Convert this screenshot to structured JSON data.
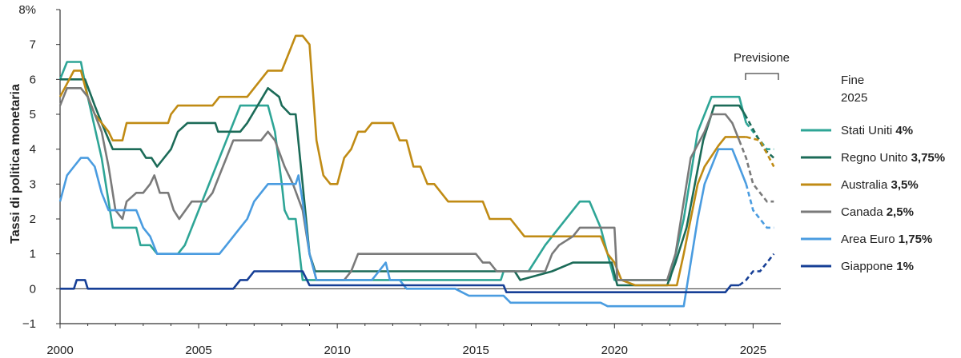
{
  "chart_data": {
    "type": "line",
    "ylabel": "Tassi di politica monetaria",
    "xlabel": "",
    "xlim": [
      2000,
      2026
    ],
    "ylim": [
      -1,
      8
    ],
    "x_ticks": [
      2000,
      2005,
      2010,
      2015,
      2020,
      2025
    ],
    "y_ticks": [
      -1,
      0,
      1,
      2,
      3,
      4,
      5,
      6,
      7,
      8
    ],
    "y_tick_labels": [
      "−1",
      "0",
      "1",
      "2",
      "3",
      "4",
      "5",
      "6",
      "7",
      "8%"
    ],
    "forecast_label": "Previsione",
    "forecast_start": 2024.5,
    "legend_title": [
      "Fine",
      "2025"
    ],
    "legend_position": "right",
    "grid": false,
    "series": [
      {
        "name": "Stati Uniti",
        "end_value_label": "4%",
        "color": "#2ea596",
        "points": [
          [
            2000,
            6.0
          ],
          [
            2000.25,
            6.5
          ],
          [
            2000.75,
            6.5
          ],
          [
            2001,
            5.5
          ],
          [
            2001.5,
            3.75
          ],
          [
            2001.9,
            1.75
          ],
          [
            2002.75,
            1.75
          ],
          [
            2002.9,
            1.25
          ],
          [
            2003.25,
            1.25
          ],
          [
            2003.5,
            1.0
          ],
          [
            2004.25,
            1.0
          ],
          [
            2004.5,
            1.25
          ],
          [
            2005,
            2.25
          ],
          [
            2005.5,
            3.25
          ],
          [
            2006,
            4.25
          ],
          [
            2006.5,
            5.25
          ],
          [
            2007.5,
            5.25
          ],
          [
            2007.75,
            4.5
          ],
          [
            2008,
            3.0
          ],
          [
            2008.1,
            2.25
          ],
          [
            2008.25,
            2.0
          ],
          [
            2008.5,
            2.0
          ],
          [
            2008.75,
            0.25
          ],
          [
            2015.9,
            0.25
          ],
          [
            2016,
            0.5
          ],
          [
            2016.9,
            0.5
          ],
          [
            2017.5,
            1.25
          ],
          [
            2018,
            1.75
          ],
          [
            2018.75,
            2.5
          ],
          [
            2019.1,
            2.5
          ],
          [
            2019.5,
            1.75
          ],
          [
            2020,
            0.25
          ],
          [
            2022,
            0.25
          ],
          [
            2022.5,
            2.0
          ],
          [
            2023,
            4.5
          ],
          [
            2023.5,
            5.5
          ],
          [
            2024.5,
            5.5
          ],
          [
            2024.75,
            4.75
          ],
          [
            2025,
            4.5
          ],
          [
            2025.5,
            4.0
          ],
          [
            2025.75,
            4.0
          ]
        ],
        "forecast_from": 2024.75
      },
      {
        "name": "Regno Unito",
        "end_value_label": "3,75%",
        "color": "#1c6b58",
        "points": [
          [
            2000,
            6.0
          ],
          [
            2000.9,
            6.0
          ],
          [
            2001.25,
            5.25
          ],
          [
            2001.5,
            4.75
          ],
          [
            2001.9,
            4.0
          ],
          [
            2002.9,
            4.0
          ],
          [
            2003.1,
            3.75
          ],
          [
            2003.3,
            3.75
          ],
          [
            2003.5,
            3.5
          ],
          [
            2004,
            4.0
          ],
          [
            2004.25,
            4.5
          ],
          [
            2004.6,
            4.75
          ],
          [
            2005.6,
            4.75
          ],
          [
            2005.7,
            4.5
          ],
          [
            2006.5,
            4.5
          ],
          [
            2006.75,
            4.75
          ],
          [
            2007.5,
            5.75
          ],
          [
            2007.9,
            5.5
          ],
          [
            2008,
            5.25
          ],
          [
            2008.3,
            5.0
          ],
          [
            2008.5,
            5.0
          ],
          [
            2008.75,
            3.0
          ],
          [
            2009,
            1.0
          ],
          [
            2009.2,
            0.5
          ],
          [
            2016.4,
            0.5
          ],
          [
            2016.6,
            0.25
          ],
          [
            2017.75,
            0.5
          ],
          [
            2018.5,
            0.75
          ],
          [
            2019.9,
            0.75
          ],
          [
            2020.1,
            0.1
          ],
          [
            2021.9,
            0.1
          ],
          [
            2022.2,
            0.75
          ],
          [
            2022.6,
            1.75
          ],
          [
            2022.9,
            3.0
          ],
          [
            2023.2,
            4.25
          ],
          [
            2023.6,
            5.25
          ],
          [
            2024.5,
            5.25
          ],
          [
            2024.7,
            5.0
          ],
          [
            2025.4,
            4.0
          ],
          [
            2025.75,
            3.75
          ]
        ],
        "forecast_from": 2024.7
      },
      {
        "name": "Australia",
        "end_value_label": "3,5%",
        "color": "#c08b14",
        "points": [
          [
            2000,
            5.5
          ],
          [
            2000.5,
            6.25
          ],
          [
            2000.75,
            6.25
          ],
          [
            2001,
            5.5
          ],
          [
            2001.25,
            5.0
          ],
          [
            2001.75,
            4.5
          ],
          [
            2001.9,
            4.25
          ],
          [
            2002.25,
            4.25
          ],
          [
            2002.4,
            4.75
          ],
          [
            2003.9,
            4.75
          ],
          [
            2004,
            5.0
          ],
          [
            2004.25,
            5.25
          ],
          [
            2005.5,
            5.25
          ],
          [
            2005.75,
            5.5
          ],
          [
            2006.75,
            5.5
          ],
          [
            2007,
            5.75
          ],
          [
            2007.5,
            6.25
          ],
          [
            2008,
            6.25
          ],
          [
            2008.25,
            6.75
          ],
          [
            2008.5,
            7.25
          ],
          [
            2008.75,
            7.25
          ],
          [
            2009,
            7.0
          ],
          [
            2009.25,
            4.25
          ],
          [
            2009.5,
            3.25
          ],
          [
            2009.75,
            3.0
          ],
          [
            2010,
            3.0
          ],
          [
            2010.25,
            3.75
          ],
          [
            2010.5,
            4.0
          ],
          [
            2010.75,
            4.5
          ],
          [
            2011,
            4.5
          ],
          [
            2011.25,
            4.75
          ],
          [
            2012,
            4.75
          ],
          [
            2012.25,
            4.25
          ],
          [
            2012.5,
            4.25
          ],
          [
            2012.75,
            3.5
          ],
          [
            2013,
            3.5
          ],
          [
            2013.25,
            3.0
          ],
          [
            2013.5,
            3.0
          ],
          [
            2014,
            2.5
          ],
          [
            2015.25,
            2.5
          ],
          [
            2015.5,
            2.0
          ],
          [
            2016.25,
            2.0
          ],
          [
            2016.5,
            1.75
          ],
          [
            2016.75,
            1.5
          ],
          [
            2019.5,
            1.5
          ],
          [
            2019.75,
            1.0
          ],
          [
            2020,
            0.75
          ],
          [
            2020.25,
            0.25
          ],
          [
            2020.75,
            0.1
          ],
          [
            2022.25,
            0.1
          ],
          [
            2022.5,
            1.0
          ],
          [
            2022.75,
            2.0
          ],
          [
            2023,
            3.0
          ],
          [
            2023.25,
            3.5
          ],
          [
            2023.75,
            4.1
          ],
          [
            2024,
            4.35
          ],
          [
            2024.5,
            4.35
          ],
          [
            2024.75,
            4.35
          ],
          [
            2025.25,
            4.25
          ],
          [
            2025.75,
            3.5
          ]
        ],
        "forecast_from": 2024.75
      },
      {
        "name": "Canada",
        "end_value_label": "2,5%",
        "color": "#7a7a7a",
        "points": [
          [
            2000,
            5.25
          ],
          [
            2000.25,
            5.75
          ],
          [
            2000.75,
            5.75
          ],
          [
            2001,
            5.5
          ],
          [
            2001.25,
            5.0
          ],
          [
            2001.5,
            4.5
          ],
          [
            2001.75,
            3.5
          ],
          [
            2002,
            2.25
          ],
          [
            2002.25,
            2.0
          ],
          [
            2002.4,
            2.5
          ],
          [
            2002.75,
            2.75
          ],
          [
            2003,
            2.75
          ],
          [
            2003.25,
            3.0
          ],
          [
            2003.4,
            3.25
          ],
          [
            2003.6,
            2.75
          ],
          [
            2003.9,
            2.75
          ],
          [
            2004.1,
            2.25
          ],
          [
            2004.3,
            2.0
          ],
          [
            2004.75,
            2.5
          ],
          [
            2005.25,
            2.5
          ],
          [
            2005.5,
            2.75
          ],
          [
            2005.75,
            3.25
          ],
          [
            2006,
            3.75
          ],
          [
            2006.25,
            4.25
          ],
          [
            2007.25,
            4.25
          ],
          [
            2007.5,
            4.5
          ],
          [
            2007.75,
            4.25
          ],
          [
            2008.1,
            3.5
          ],
          [
            2008.4,
            3.0
          ],
          [
            2008.75,
            2.25
          ],
          [
            2009,
            1.0
          ],
          [
            2009.25,
            0.25
          ],
          [
            2010.25,
            0.25
          ],
          [
            2010.5,
            0.5
          ],
          [
            2010.75,
            1.0
          ],
          [
            2015,
            1.0
          ],
          [
            2015.25,
            0.75
          ],
          [
            2015.5,
            0.75
          ],
          [
            2015.75,
            0.5
          ],
          [
            2016.5,
            0.5
          ],
          [
            2017.5,
            0.5
          ],
          [
            2017.75,
            1.0
          ],
          [
            2018,
            1.25
          ],
          [
            2018.5,
            1.5
          ],
          [
            2018.75,
            1.75
          ],
          [
            2020,
            1.75
          ],
          [
            2020.1,
            0.25
          ],
          [
            2021.9,
            0.25
          ],
          [
            2022.2,
            1.0
          ],
          [
            2022.5,
            2.5
          ],
          [
            2022.75,
            3.75
          ],
          [
            2023.25,
            4.5
          ],
          [
            2023.5,
            5.0
          ],
          [
            2024,
            5.0
          ],
          [
            2024.25,
            4.75
          ],
          [
            2024.5,
            4.25
          ],
          [
            2024.75,
            3.75
          ],
          [
            2025,
            3.0
          ],
          [
            2025.5,
            2.5
          ],
          [
            2025.75,
            2.5
          ]
        ],
        "forecast_from": 2024.5
      },
      {
        "name": "Area Euro",
        "end_value_label": "1,75%",
        "color": "#4a9ce0",
        "points": [
          [
            2000,
            2.5
          ],
          [
            2000.25,
            3.25
          ],
          [
            2000.5,
            3.5
          ],
          [
            2000.75,
            3.75
          ],
          [
            2001,
            3.75
          ],
          [
            2001.25,
            3.5
          ],
          [
            2001.5,
            2.75
          ],
          [
            2001.75,
            2.25
          ],
          [
            2002.75,
            2.25
          ],
          [
            2003,
            1.75
          ],
          [
            2003.25,
            1.5
          ],
          [
            2003.5,
            1.0
          ],
          [
            2005.75,
            1.0
          ],
          [
            2006,
            1.25
          ],
          [
            2006.5,
            1.75
          ],
          [
            2006.75,
            2.0
          ],
          [
            2007,
            2.5
          ],
          [
            2007.5,
            3.0
          ],
          [
            2008.5,
            3.0
          ],
          [
            2008.6,
            3.25
          ],
          [
            2008.75,
            2.5
          ],
          [
            2009,
            1.0
          ],
          [
            2009.25,
            0.25
          ],
          [
            2011.25,
            0.25
          ],
          [
            2011.5,
            0.5
          ],
          [
            2011.75,
            0.75
          ],
          [
            2011.9,
            0.25
          ],
          [
            2012.25,
            0.25
          ],
          [
            2012.5,
            0.0
          ],
          [
            2014.25,
            0.0
          ],
          [
            2014.5,
            -0.1
          ],
          [
            2014.75,
            -0.2
          ],
          [
            2016,
            -0.2
          ],
          [
            2016.25,
            -0.4
          ],
          [
            2019.5,
            -0.4
          ],
          [
            2019.75,
            -0.5
          ],
          [
            2022.5,
            -0.5
          ],
          [
            2022.75,
            0.75
          ],
          [
            2023,
            2.0
          ],
          [
            2023.25,
            3.0
          ],
          [
            2023.75,
            4.0
          ],
          [
            2024.25,
            4.0
          ],
          [
            2024.5,
            3.5
          ],
          [
            2024.75,
            3.0
          ],
          [
            2025,
            2.25
          ],
          [
            2025.25,
            2.0
          ],
          [
            2025.5,
            1.75
          ],
          [
            2025.75,
            1.75
          ]
        ],
        "forecast_from": 2024.75
      },
      {
        "name": "Giappone",
        "end_value_label": "1%",
        "color": "#163f96",
        "points": [
          [
            2000,
            0.0
          ],
          [
            2000.5,
            0.0
          ],
          [
            2000.6,
            0.25
          ],
          [
            2000.9,
            0.25
          ],
          [
            2001,
            0.0
          ],
          [
            2006.25,
            0.0
          ],
          [
            2006.5,
            0.25
          ],
          [
            2006.75,
            0.25
          ],
          [
            2007,
            0.5
          ],
          [
            2008.75,
            0.5
          ],
          [
            2009,
            0.1
          ],
          [
            2016,
            0.1
          ],
          [
            2016.1,
            -0.1
          ],
          [
            2024,
            -0.1
          ],
          [
            2024.2,
            0.1
          ],
          [
            2024.5,
            0.1
          ],
          [
            2024.75,
            0.25
          ],
          [
            2025,
            0.5
          ],
          [
            2025.25,
            0.5
          ],
          [
            2025.5,
            0.75
          ],
          [
            2025.75,
            1.0
          ]
        ],
        "forecast_from": 2024.5
      }
    ]
  }
}
